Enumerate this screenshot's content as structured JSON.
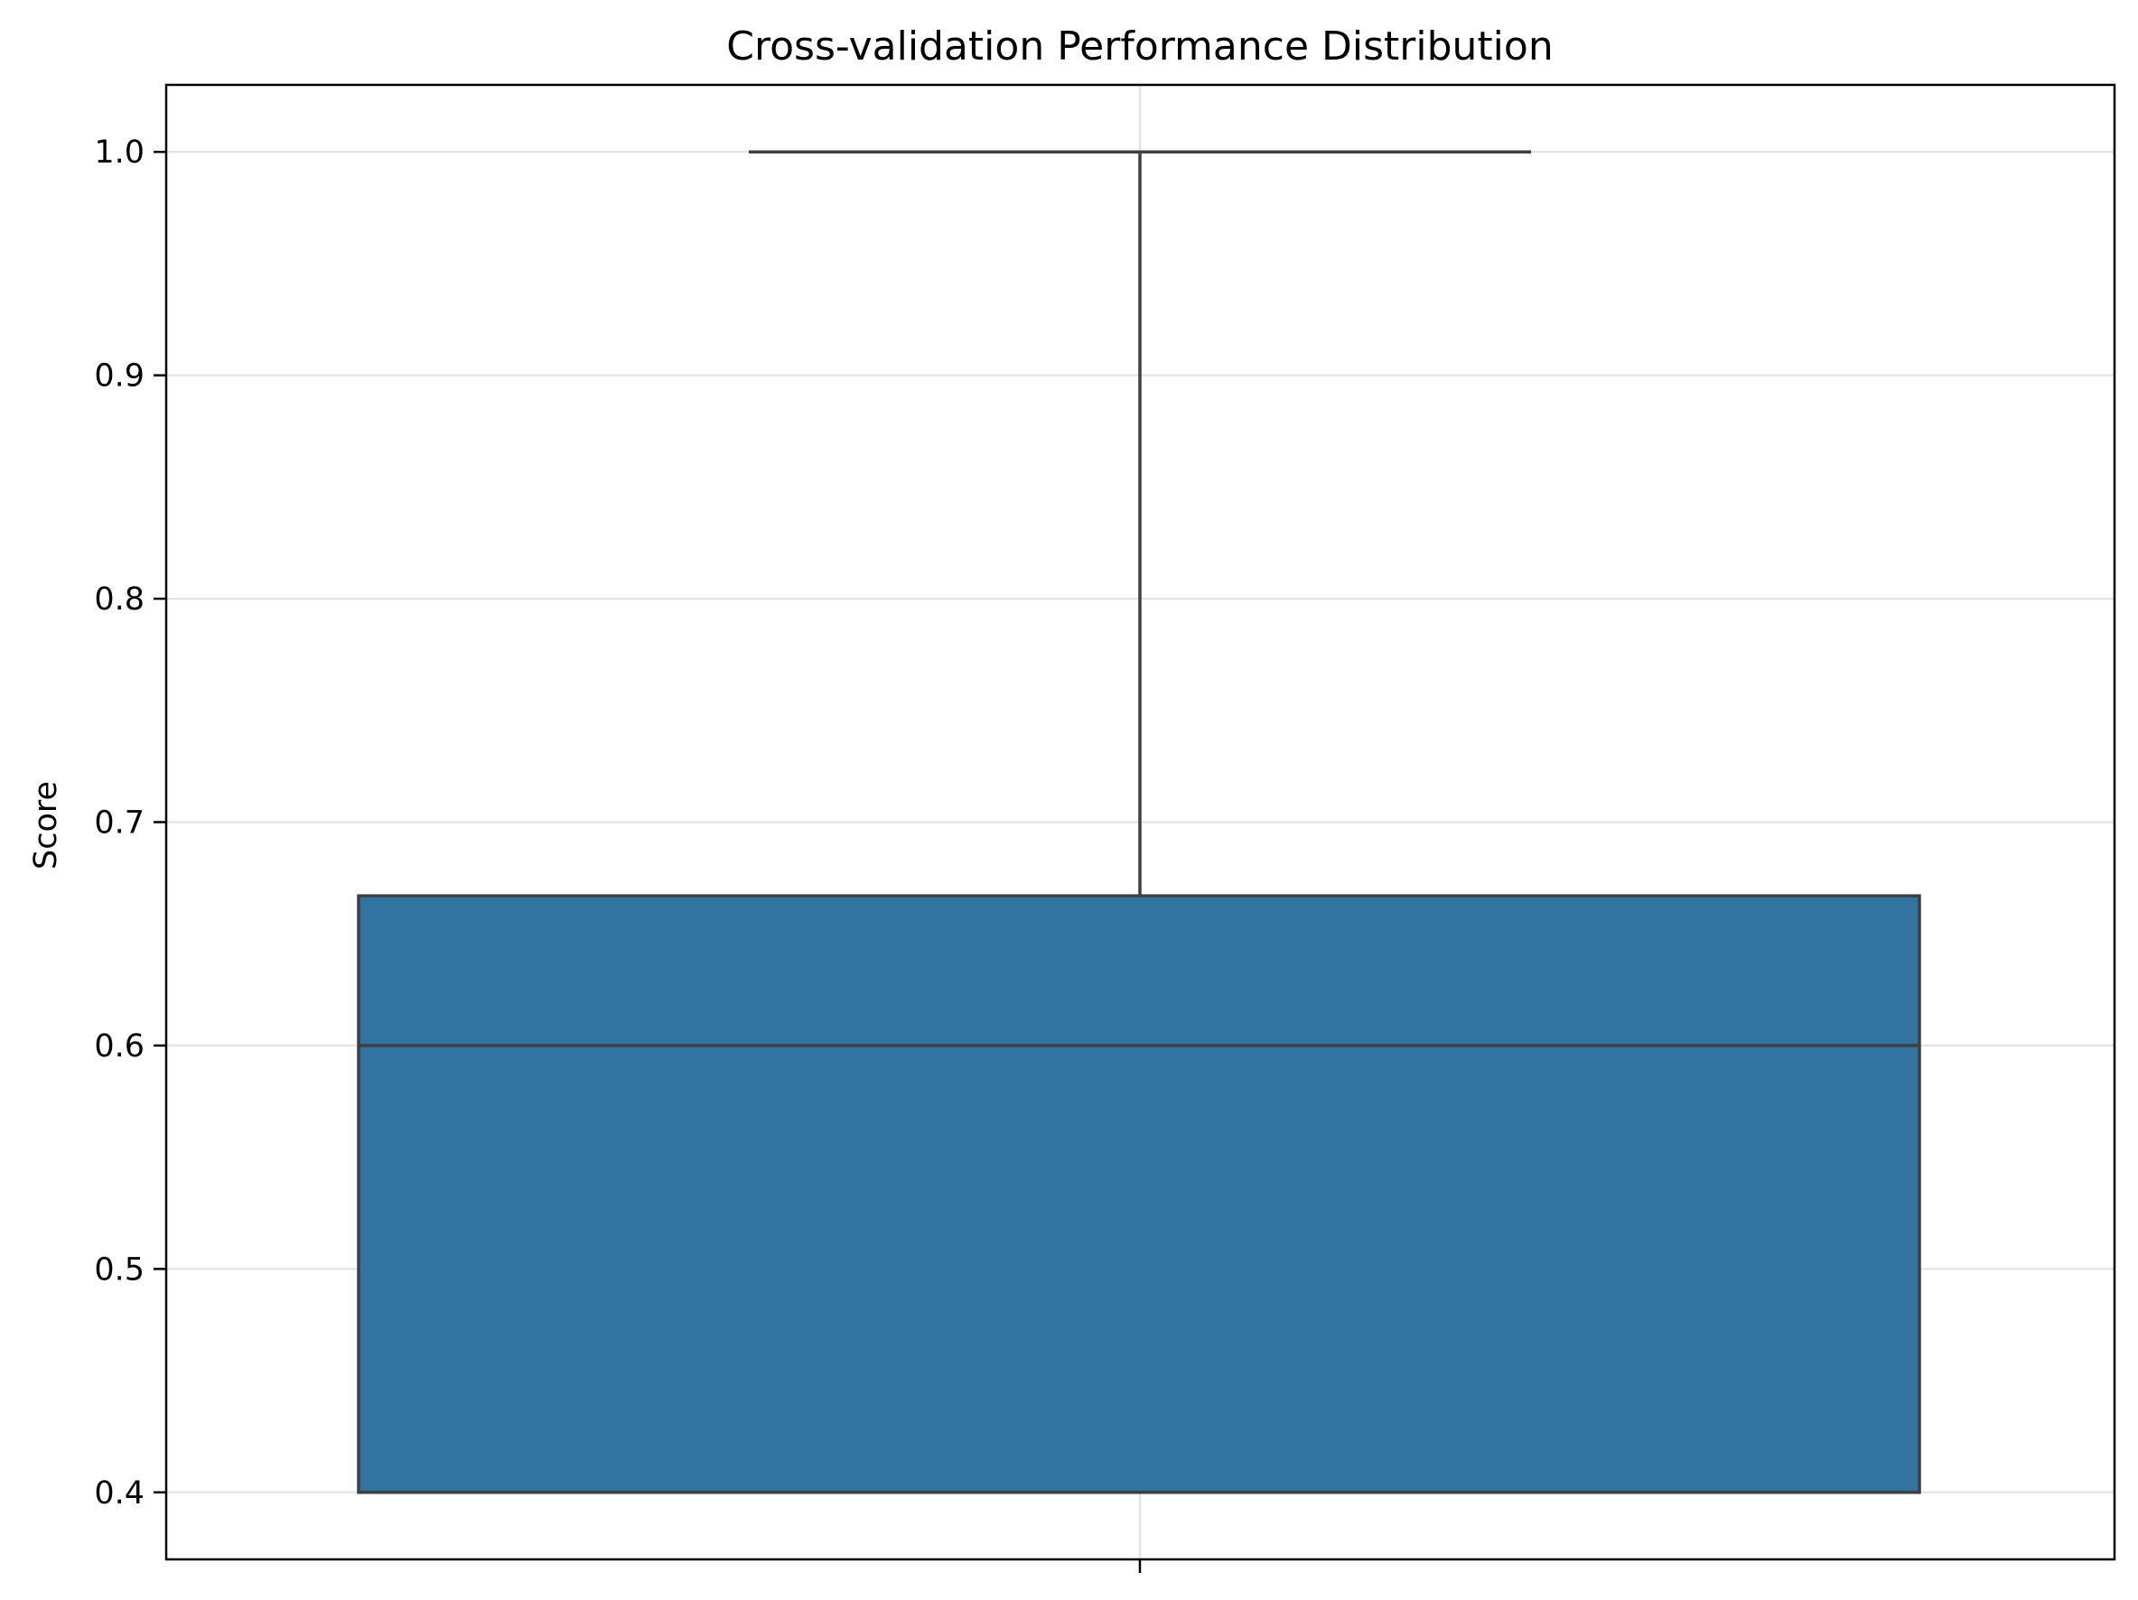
{
  "chart_data": {
    "type": "box",
    "title": "Cross-validation Performance Distribution",
    "xlabel": "",
    "ylabel": "Score",
    "ylim": [
      0.37,
      1.03
    ],
    "yticks": [
      "0.4",
      "0.5",
      "0.6",
      "0.7",
      "0.8",
      "0.9",
      "1.0"
    ],
    "ytick_values": [
      0.4,
      0.5,
      0.6,
      0.7,
      0.8,
      0.9,
      1.0
    ],
    "grid": true,
    "box": {
      "whisker_low": 0.4,
      "q1": 0.4,
      "median": 0.6,
      "q3": 0.667,
      "whisker_high": 1.0
    },
    "colors": {
      "box_fill": "#3274a1",
      "box_edge": "#3f3f3f",
      "grid": "#e5e5e5",
      "axes": "#000000"
    }
  }
}
